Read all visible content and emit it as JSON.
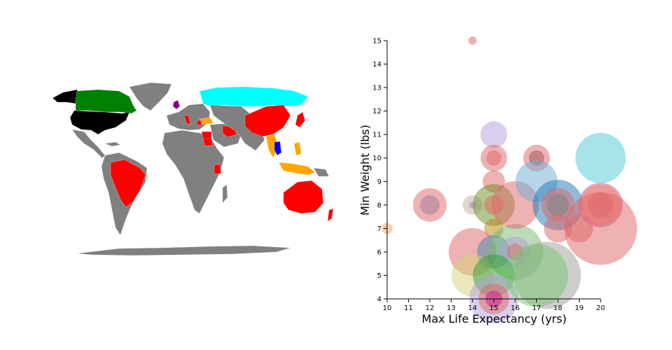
{
  "map": {
    "colors": {
      "base": "#808080",
      "black": "#000000",
      "green": "#008000",
      "cyan": "#00ffff",
      "red": "#ff0000",
      "orange": "#ffa500",
      "blue": "#0000ff",
      "purple": "#800080"
    }
  },
  "chart_data": {
    "type": "scatter",
    "xlabel": "Max Life Expectancy (yrs)",
    "ylabel": "Min Weight (lbs)",
    "xlim": [
      10,
      20
    ],
    "ylim": [
      4,
      15
    ],
    "x_ticks": [
      "10",
      "11",
      "12",
      "13",
      "14",
      "15",
      "16",
      "17",
      "18",
      "19",
      "20"
    ],
    "y_ticks": [
      "4",
      "5",
      "6",
      "7",
      "8",
      "9",
      "10",
      "11",
      "12",
      "13",
      "14",
      "15"
    ],
    "grid": false,
    "points": [
      {
        "x": 14,
        "y": 15,
        "r": 6,
        "color": "#e06666"
      },
      {
        "x": 10,
        "y": 7,
        "r": 8,
        "color": "#f4a460"
      },
      {
        "x": 12,
        "y": 8,
        "r": 24,
        "color": "#e06666"
      },
      {
        "x": 12,
        "y": 8,
        "r": 14,
        "color": "#9e7a9e"
      },
      {
        "x": 14,
        "y": 8,
        "r": 14,
        "color": "#c0b0a0"
      },
      {
        "x": 14,
        "y": 8,
        "r": 5,
        "color": "#b080c0"
      },
      {
        "x": 15,
        "y": 11,
        "r": 19,
        "color": "#b39ddb"
      },
      {
        "x": 15,
        "y": 10,
        "r": 19,
        "color": "#e06666"
      },
      {
        "x": 15,
        "y": 10,
        "r": 11,
        "color": "#e06666"
      },
      {
        "x": 15,
        "y": 9,
        "r": 16,
        "color": "#e06666"
      },
      {
        "x": 15,
        "y": 8,
        "r": 30,
        "color": "#6b8e23"
      },
      {
        "x": 15,
        "y": 8,
        "r": 14,
        "color": "#e06666"
      },
      {
        "x": 15,
        "y": 7,
        "r": 14,
        "color": "#b8860b"
      },
      {
        "x": 14,
        "y": 6,
        "r": 34,
        "color": "#e06666"
      },
      {
        "x": 15,
        "y": 6,
        "r": 24,
        "color": "#4682b4"
      },
      {
        "x": 16,
        "y": 6,
        "r": 40,
        "color": "#77b86f"
      },
      {
        "x": 16,
        "y": 6,
        "r": 22,
        "color": "#b39ddb"
      },
      {
        "x": 16,
        "y": 6,
        "r": 12,
        "color": "#e06666"
      },
      {
        "x": 14,
        "y": 5,
        "r": 30,
        "color": "#d4d47a"
      },
      {
        "x": 15,
        "y": 5,
        "r": 30,
        "color": "#2ca02c"
      },
      {
        "x": 15,
        "y": 4,
        "r": 35,
        "color": "#b39ddb"
      },
      {
        "x": 15,
        "y": 4,
        "r": 22,
        "color": "#e06666"
      },
      {
        "x": 15,
        "y": 4,
        "r": 12,
        "color": "#c71585"
      },
      {
        "x": 16,
        "y": 8,
        "r": 34,
        "color": "#e06666"
      },
      {
        "x": 17,
        "y": 10,
        "r": 19,
        "color": "#e06666"
      },
      {
        "x": 17,
        "y": 10,
        "r": 11,
        "color": "#a05050"
      },
      {
        "x": 17,
        "y": 9,
        "r": 30,
        "color": "#6baed6"
      },
      {
        "x": 18,
        "y": 8,
        "r": 36,
        "color": "#1f77b4"
      },
      {
        "x": 18,
        "y": 8,
        "r": 24,
        "color": "#e06666"
      },
      {
        "x": 18,
        "y": 8,
        "r": 16,
        "color": "#808080"
      },
      {
        "x": 18,
        "y": 7,
        "r": 20,
        "color": "#e06666"
      },
      {
        "x": 17.5,
        "y": 5,
        "r": 48,
        "color": "#9e9e9e"
      },
      {
        "x": 17,
        "y": 5,
        "r": 45,
        "color": "#77c36f"
      },
      {
        "x": 19,
        "y": 7,
        "r": 20,
        "color": "#e06666"
      },
      {
        "x": 20,
        "y": 10,
        "r": 36,
        "color": "#4ec9d6"
      },
      {
        "x": 20,
        "y": 8,
        "r": 32,
        "color": "#ba68c8"
      },
      {
        "x": 20,
        "y": 8,
        "r": 30,
        "color": "#ff7f50"
      },
      {
        "x": 20,
        "y": 8,
        "r": 18,
        "color": "#e06666"
      },
      {
        "x": 20,
        "y": 7,
        "r": 52,
        "color": "#e06666"
      }
    ]
  }
}
